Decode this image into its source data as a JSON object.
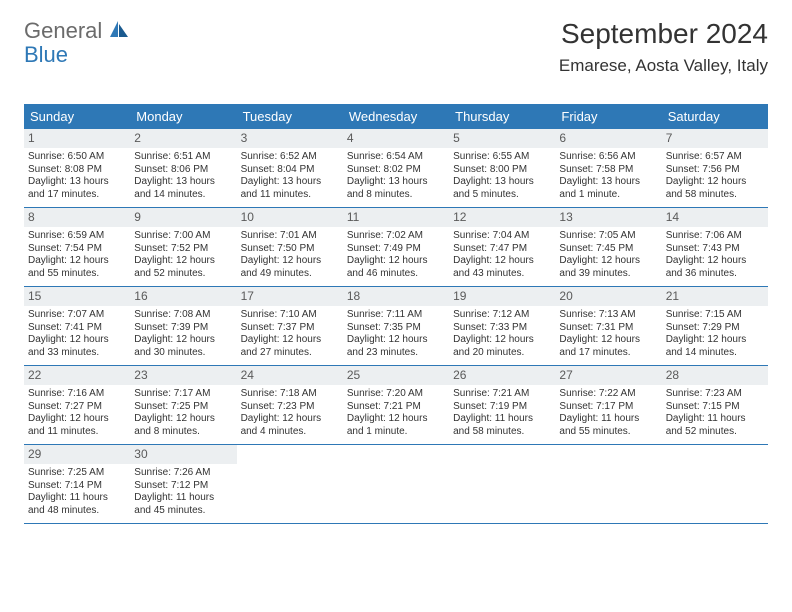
{
  "logo": {
    "text1": "General",
    "text2": "Blue"
  },
  "title": "September 2024",
  "location": "Emarese, Aosta Valley, Italy",
  "colors": {
    "header_bg": "#2e78b6",
    "header_text": "#ffffff",
    "daynum_bg": "#eceff1",
    "text": "#333333",
    "logo_gray": "#6b6b6b",
    "logo_blue": "#2e78b6",
    "page_bg": "#ffffff"
  },
  "weekdays": [
    "Sunday",
    "Monday",
    "Tuesday",
    "Wednesday",
    "Thursday",
    "Friday",
    "Saturday"
  ],
  "weeks": [
    [
      {
        "n": "1",
        "sr": "Sunrise: 6:50 AM",
        "ss": "Sunset: 8:08 PM",
        "d1": "Daylight: 13 hours",
        "d2": "and 17 minutes."
      },
      {
        "n": "2",
        "sr": "Sunrise: 6:51 AM",
        "ss": "Sunset: 8:06 PM",
        "d1": "Daylight: 13 hours",
        "d2": "and 14 minutes."
      },
      {
        "n": "3",
        "sr": "Sunrise: 6:52 AM",
        "ss": "Sunset: 8:04 PM",
        "d1": "Daylight: 13 hours",
        "d2": "and 11 minutes."
      },
      {
        "n": "4",
        "sr": "Sunrise: 6:54 AM",
        "ss": "Sunset: 8:02 PM",
        "d1": "Daylight: 13 hours",
        "d2": "and 8 minutes."
      },
      {
        "n": "5",
        "sr": "Sunrise: 6:55 AM",
        "ss": "Sunset: 8:00 PM",
        "d1": "Daylight: 13 hours",
        "d2": "and 5 minutes."
      },
      {
        "n": "6",
        "sr": "Sunrise: 6:56 AM",
        "ss": "Sunset: 7:58 PM",
        "d1": "Daylight: 13 hours",
        "d2": "and 1 minute."
      },
      {
        "n": "7",
        "sr": "Sunrise: 6:57 AM",
        "ss": "Sunset: 7:56 PM",
        "d1": "Daylight: 12 hours",
        "d2": "and 58 minutes."
      }
    ],
    [
      {
        "n": "8",
        "sr": "Sunrise: 6:59 AM",
        "ss": "Sunset: 7:54 PM",
        "d1": "Daylight: 12 hours",
        "d2": "and 55 minutes."
      },
      {
        "n": "9",
        "sr": "Sunrise: 7:00 AM",
        "ss": "Sunset: 7:52 PM",
        "d1": "Daylight: 12 hours",
        "d2": "and 52 minutes."
      },
      {
        "n": "10",
        "sr": "Sunrise: 7:01 AM",
        "ss": "Sunset: 7:50 PM",
        "d1": "Daylight: 12 hours",
        "d2": "and 49 minutes."
      },
      {
        "n": "11",
        "sr": "Sunrise: 7:02 AM",
        "ss": "Sunset: 7:49 PM",
        "d1": "Daylight: 12 hours",
        "d2": "and 46 minutes."
      },
      {
        "n": "12",
        "sr": "Sunrise: 7:04 AM",
        "ss": "Sunset: 7:47 PM",
        "d1": "Daylight: 12 hours",
        "d2": "and 43 minutes."
      },
      {
        "n": "13",
        "sr": "Sunrise: 7:05 AM",
        "ss": "Sunset: 7:45 PM",
        "d1": "Daylight: 12 hours",
        "d2": "and 39 minutes."
      },
      {
        "n": "14",
        "sr": "Sunrise: 7:06 AM",
        "ss": "Sunset: 7:43 PM",
        "d1": "Daylight: 12 hours",
        "d2": "and 36 minutes."
      }
    ],
    [
      {
        "n": "15",
        "sr": "Sunrise: 7:07 AM",
        "ss": "Sunset: 7:41 PM",
        "d1": "Daylight: 12 hours",
        "d2": "and 33 minutes."
      },
      {
        "n": "16",
        "sr": "Sunrise: 7:08 AM",
        "ss": "Sunset: 7:39 PM",
        "d1": "Daylight: 12 hours",
        "d2": "and 30 minutes."
      },
      {
        "n": "17",
        "sr": "Sunrise: 7:10 AM",
        "ss": "Sunset: 7:37 PM",
        "d1": "Daylight: 12 hours",
        "d2": "and 27 minutes."
      },
      {
        "n": "18",
        "sr": "Sunrise: 7:11 AM",
        "ss": "Sunset: 7:35 PM",
        "d1": "Daylight: 12 hours",
        "d2": "and 23 minutes."
      },
      {
        "n": "19",
        "sr": "Sunrise: 7:12 AM",
        "ss": "Sunset: 7:33 PM",
        "d1": "Daylight: 12 hours",
        "d2": "and 20 minutes."
      },
      {
        "n": "20",
        "sr": "Sunrise: 7:13 AM",
        "ss": "Sunset: 7:31 PM",
        "d1": "Daylight: 12 hours",
        "d2": "and 17 minutes."
      },
      {
        "n": "21",
        "sr": "Sunrise: 7:15 AM",
        "ss": "Sunset: 7:29 PM",
        "d1": "Daylight: 12 hours",
        "d2": "and 14 minutes."
      }
    ],
    [
      {
        "n": "22",
        "sr": "Sunrise: 7:16 AM",
        "ss": "Sunset: 7:27 PM",
        "d1": "Daylight: 12 hours",
        "d2": "and 11 minutes."
      },
      {
        "n": "23",
        "sr": "Sunrise: 7:17 AM",
        "ss": "Sunset: 7:25 PM",
        "d1": "Daylight: 12 hours",
        "d2": "and 8 minutes."
      },
      {
        "n": "24",
        "sr": "Sunrise: 7:18 AM",
        "ss": "Sunset: 7:23 PM",
        "d1": "Daylight: 12 hours",
        "d2": "and 4 minutes."
      },
      {
        "n": "25",
        "sr": "Sunrise: 7:20 AM",
        "ss": "Sunset: 7:21 PM",
        "d1": "Daylight: 12 hours",
        "d2": "and 1 minute."
      },
      {
        "n": "26",
        "sr": "Sunrise: 7:21 AM",
        "ss": "Sunset: 7:19 PM",
        "d1": "Daylight: 11 hours",
        "d2": "and 58 minutes."
      },
      {
        "n": "27",
        "sr": "Sunrise: 7:22 AM",
        "ss": "Sunset: 7:17 PM",
        "d1": "Daylight: 11 hours",
        "d2": "and 55 minutes."
      },
      {
        "n": "28",
        "sr": "Sunrise: 7:23 AM",
        "ss": "Sunset: 7:15 PM",
        "d1": "Daylight: 11 hours",
        "d2": "and 52 minutes."
      }
    ],
    [
      {
        "n": "29",
        "sr": "Sunrise: 7:25 AM",
        "ss": "Sunset: 7:14 PM",
        "d1": "Daylight: 11 hours",
        "d2": "and 48 minutes."
      },
      {
        "n": "30",
        "sr": "Sunrise: 7:26 AM",
        "ss": "Sunset: 7:12 PM",
        "d1": "Daylight: 11 hours",
        "d2": "and 45 minutes."
      },
      {
        "empty": true
      },
      {
        "empty": true
      },
      {
        "empty": true
      },
      {
        "empty": true
      },
      {
        "empty": true
      }
    ]
  ]
}
